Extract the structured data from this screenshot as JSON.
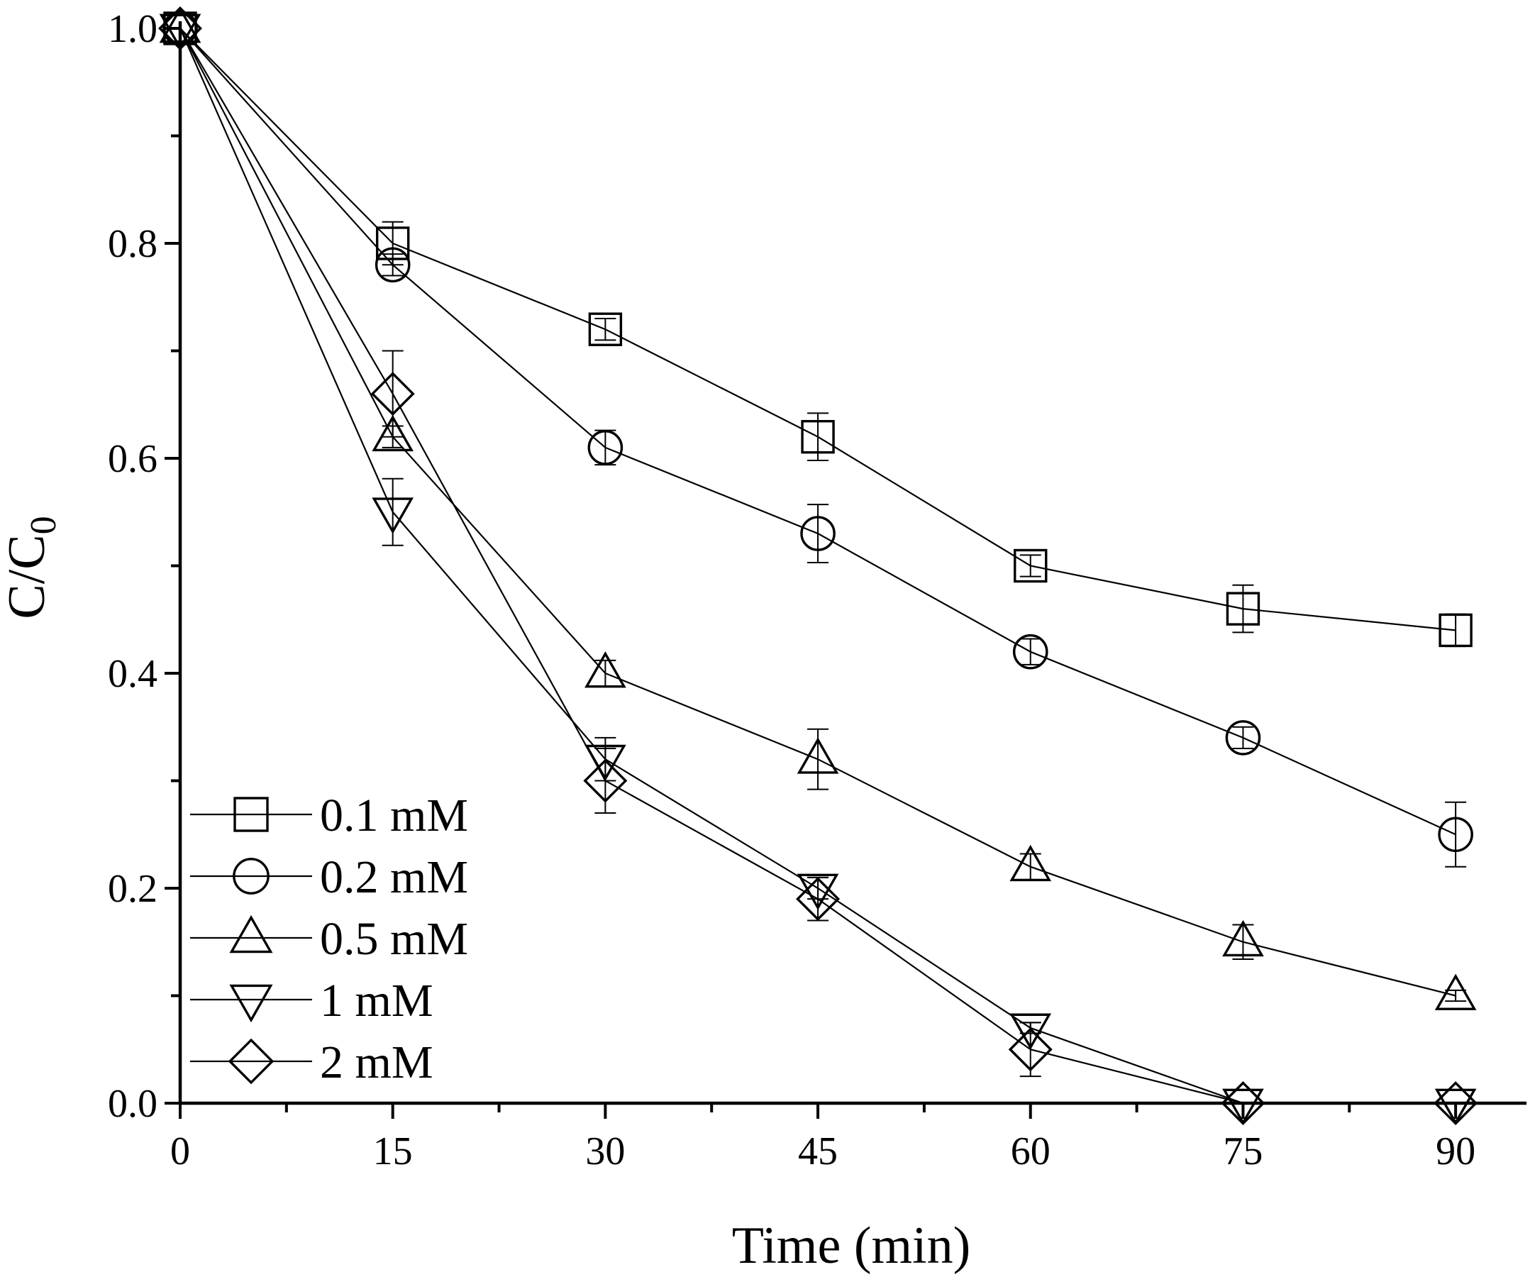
{
  "chart_data": {
    "type": "line",
    "title": "",
    "xlabel": "Time (min)",
    "ylabel": "C/C",
    "ylabel_subscript": "0",
    "xlim": [
      0,
      95
    ],
    "ylim": [
      0,
      1.0
    ],
    "x_ticks": [
      0,
      15,
      30,
      45,
      60,
      75,
      90
    ],
    "x_tick_labels": [
      "0",
      "15",
      "30",
      "45",
      "60",
      "75",
      "90"
    ],
    "x_minor_ticks": [
      7.5,
      22.5,
      37.5,
      52.5,
      67.5,
      82.5
    ],
    "y_ticks": [
      0,
      0.2,
      0.4,
      0.6,
      0.8,
      1.0
    ],
    "y_tick_labels": [
      "0.0",
      "0.2",
      "0.4",
      "0.6",
      "0.8",
      "1.0"
    ],
    "y_minor_ticks": [
      0.1,
      0.3,
      0.5,
      0.7,
      0.9
    ],
    "grid": false,
    "legend_position": "bottom-left",
    "x": [
      0,
      15,
      30,
      45,
      60,
      75,
      90
    ],
    "series": [
      {
        "name": "0.1 mM",
        "marker": "square",
        "values": [
          1.0,
          0.8,
          0.72,
          0.62,
          0.5,
          0.46,
          0.44
        ],
        "errors": [
          0,
          0.02,
          0.01,
          0.022,
          0.01,
          0.022,
          0.015
        ]
      },
      {
        "name": "0.2 mM",
        "marker": "circle",
        "values": [
          1.0,
          0.78,
          0.61,
          0.53,
          0.42,
          0.34,
          0.25
        ],
        "errors": [
          0,
          0.01,
          0.016,
          0.027,
          0.012,
          0.01,
          0.03
        ]
      },
      {
        "name": "0.5 mM",
        "marker": "triangle-up",
        "values": [
          1.0,
          0.62,
          0.4,
          0.32,
          0.22,
          0.15,
          0.1
        ],
        "errors": [
          0,
          0.01,
          0.012,
          0.028,
          0.012,
          0.016,
          0.005
        ]
      },
      {
        "name": "1 mM",
        "marker": "triangle-down",
        "values": [
          1.0,
          0.55,
          0.32,
          0.2,
          0.07,
          0.0,
          0.0
        ],
        "errors": [
          0,
          0.031,
          0.02,
          0.01,
          0.005,
          0,
          0
        ]
      },
      {
        "name": "2 mM",
        "marker": "diamond",
        "values": [
          1.0,
          0.66,
          0.3,
          0.19,
          0.05,
          0.0,
          0.0
        ],
        "errors": [
          0,
          0.04,
          0.03,
          0.02,
          0.025,
          0,
          0
        ]
      }
    ]
  }
}
